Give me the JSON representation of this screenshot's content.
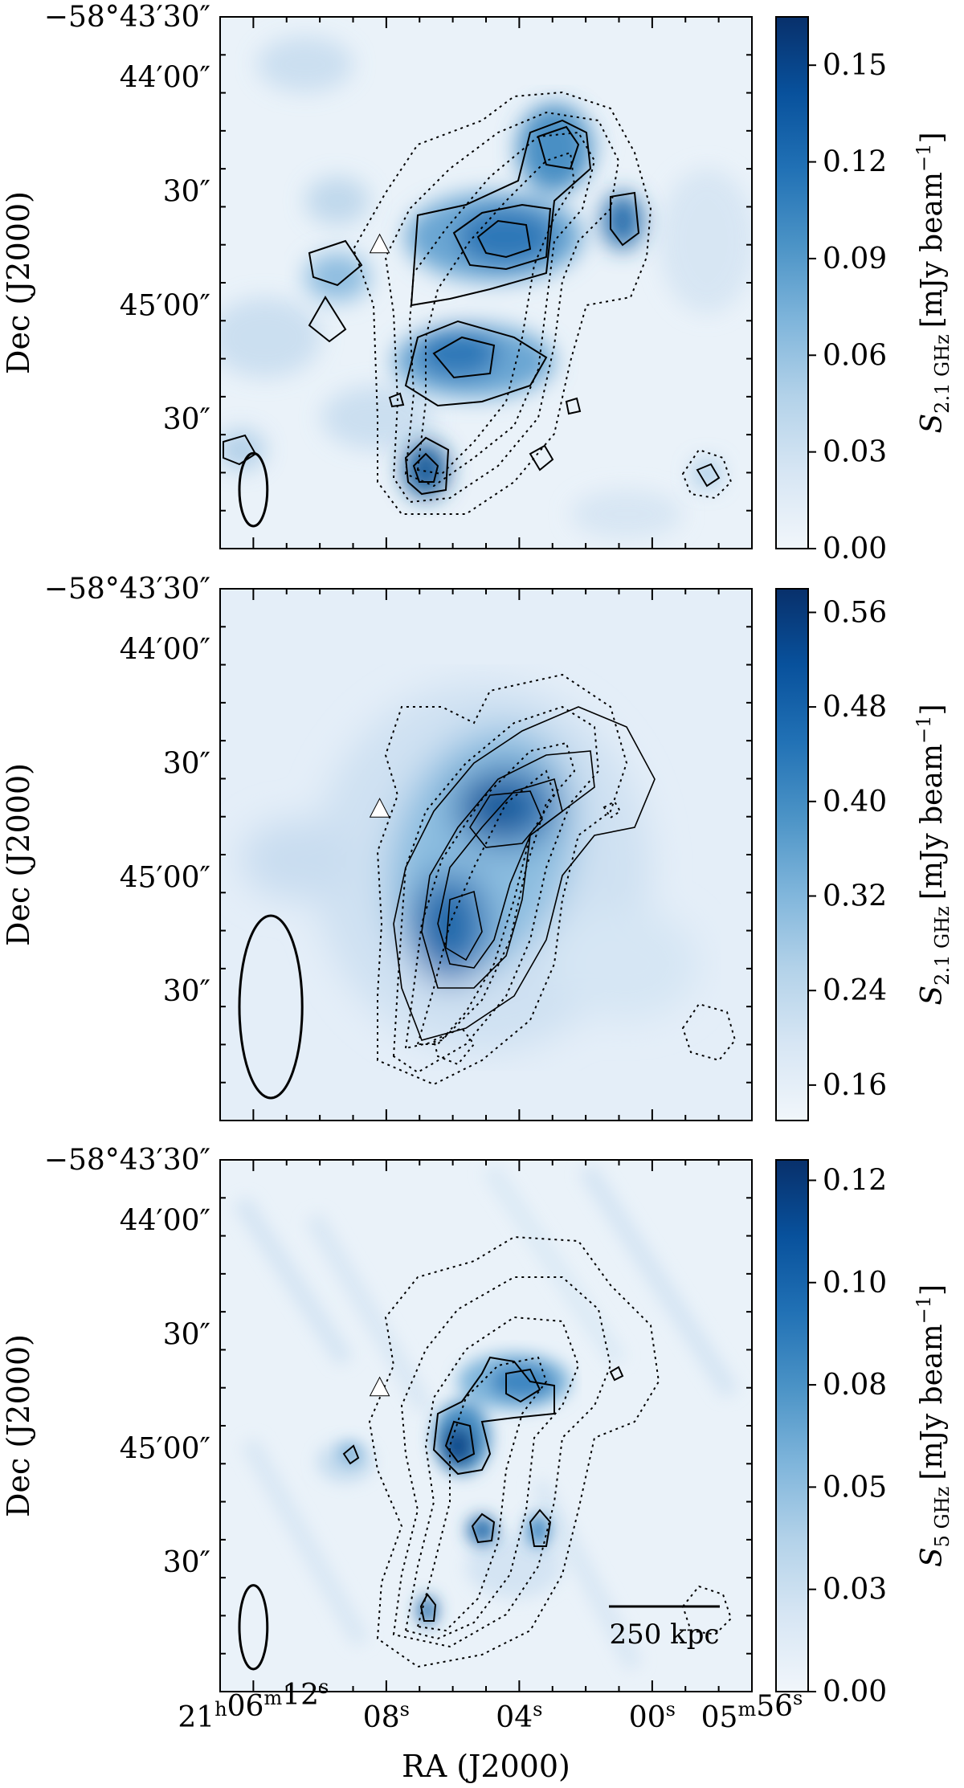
{
  "chart_data": [
    {
      "type": "heatmap",
      "title": "",
      "xlabel": "",
      "ylabel": "Dec (J2000)",
      "dec_tick_labels": [
        "−58°43′30″",
        "44′00″",
        "30″",
        "45′00″",
        "30″"
      ],
      "ra_tick_labels": [],
      "colorbar": {
        "label_var": "S",
        "label_sub": "2.1 GHz",
        "label_unit": "[mJy beam",
        "label_exp": "−1",
        "label_close": "]",
        "ticks": [
          "0.00",
          "0.03",
          "0.06",
          "0.09",
          "0.12",
          "0.15"
        ],
        "tick_values": [
          0.0,
          0.03,
          0.06,
          0.09,
          0.12,
          0.15
        ],
        "range": [
          0.0,
          0.165
        ],
        "cmap": [
          "#f1f6fb",
          "#d7e6f4",
          "#b3d2e9",
          "#7fb5db",
          "#4b93c6",
          "#2171b5",
          "#08519c",
          "#08306b"
        ]
      },
      "sources": [
        {
          "ra": 5.5,
          "dec": 26,
          "amp": 0.165,
          "sigma": 1.2
        },
        {
          "ra": 3.4,
          "dec": 14,
          "amp": 0.155,
          "sigma": 1.0
        },
        {
          "ra": -0.5,
          "dec": 25,
          "amp": 0.13,
          "sigma": 0.7
        },
        {
          "ra": 5.7,
          "dec": 46,
          "amp": 0.15,
          "sigma": 1.2
        },
        {
          "ra": 4.3,
          "dec": 52,
          "amp": 0.11,
          "sigma": 0.9
        },
        {
          "ra": 7.3,
          "dec": 62,
          "amp": 0.155,
          "sigma": 0.8
        },
        {
          "ra": 11.0,
          "dec": 30,
          "amp": 0.06,
          "sigma": 0.8
        }
      ],
      "marker": {
        "ra": 4.8,
        "dec": 30
      },
      "beam": {
        "width_s": 0.4,
        "height_s": 2.0
      }
    },
    {
      "type": "heatmap",
      "title": "",
      "xlabel": "",
      "ylabel": "Dec (J2000)",
      "dec_tick_labels": [
        "−58°43′30″",
        "44′00″",
        "30″",
        "45′00″",
        "30″"
      ],
      "ra_tick_labels": [],
      "colorbar": {
        "label_var": "S",
        "label_sub": "2.1 GHz",
        "label_unit": "[mJy beam",
        "label_exp": "−1",
        "label_close": "]",
        "ticks": [
          "0.16",
          "0.24",
          "0.32",
          "0.40",
          "0.48",
          "0.56"
        ],
        "tick_values": [
          0.16,
          0.24,
          0.32,
          0.4,
          0.48,
          0.56
        ],
        "range": [
          0.13,
          0.58
        ],
        "cmap": [
          "#f1f6fb",
          "#d7e6f4",
          "#b3d2e9",
          "#7fb5db",
          "#4b93c6",
          "#2171b5",
          "#08519c",
          "#08306b"
        ]
      },
      "sources": [
        {
          "ra": 4.8,
          "dec": 30,
          "amp": 0.56,
          "sigma": 2.0
        },
        {
          "ra": 6.1,
          "dec": 44,
          "amp": 0.52,
          "sigma": 2.2
        },
        {
          "ra": 3.0,
          "dec": 24,
          "amp": 0.36,
          "sigma": 1.8
        }
      ],
      "marker": {
        "ra": 4.8,
        "dec": 29
      },
      "beam": {
        "width_s": 0.9,
        "height_s": 5.0
      }
    },
    {
      "type": "heatmap",
      "title": "",
      "xlabel": "RA (J2000)",
      "ylabel": "Dec (J2000)",
      "dec_tick_labels": [
        "−58°43′30″",
        "44′00″",
        "30″",
        "45′00″",
        "30″"
      ],
      "ra_tick_labels": [
        {
          "h": "21",
          "hu": "h",
          "m": "06",
          "mu": "m",
          "s": "12",
          "su": "s"
        },
        {
          "s": "08",
          "su": "s"
        },
        {
          "s": "04",
          "su": "s"
        },
        {
          "s": "00",
          "su": "s"
        },
        {
          "m": "05",
          "mu": "m",
          "s": "56",
          "su": "s"
        }
      ],
      "colorbar": {
        "label_var": "S",
        "label_sub": "5 GHz",
        "label_unit": "[mJy beam",
        "label_exp": "−1",
        "label_close": "]",
        "ticks": [
          "0.00",
          "0.03",
          "0.05",
          "0.08",
          "0.10",
          "0.12"
        ],
        "tick_values": [
          0.0,
          0.025,
          0.05,
          0.075,
          0.1,
          0.125
        ],
        "range": [
          0.0,
          0.13
        ],
        "cmap": [
          "#f1f6fb",
          "#d7e6f4",
          "#b3d2e9",
          "#7fb5db",
          "#4b93c6",
          "#2171b5",
          "#08519c",
          "#08306b"
        ]
      },
      "sources": [
        {
          "ra": 6.5,
          "dec": 41,
          "amp": 0.125,
          "sigma": 0.8
        },
        {
          "ra": 4.0,
          "dec": 30,
          "amp": 0.09,
          "sigma": 0.9
        },
        {
          "ra": 5.5,
          "dec": 51,
          "amp": 0.07,
          "sigma": 0.6
        },
        {
          "ra": 2.9,
          "dec": 50,
          "amp": 0.065,
          "sigma": 0.6
        },
        {
          "ra": 7.1,
          "dec": 60,
          "amp": 0.07,
          "sigma": 0.6
        },
        {
          "ra": 9.8,
          "dec": 42,
          "amp": 0.035,
          "sigma": 0.5
        }
      ],
      "marker": {
        "ra": 4.8,
        "dec": 30
      },
      "beam": {
        "width_s": 0.4,
        "height_s": 2.3
      },
      "scalebar_label": "250 kpc"
    }
  ],
  "x_axis_title": "RA (J2000)"
}
